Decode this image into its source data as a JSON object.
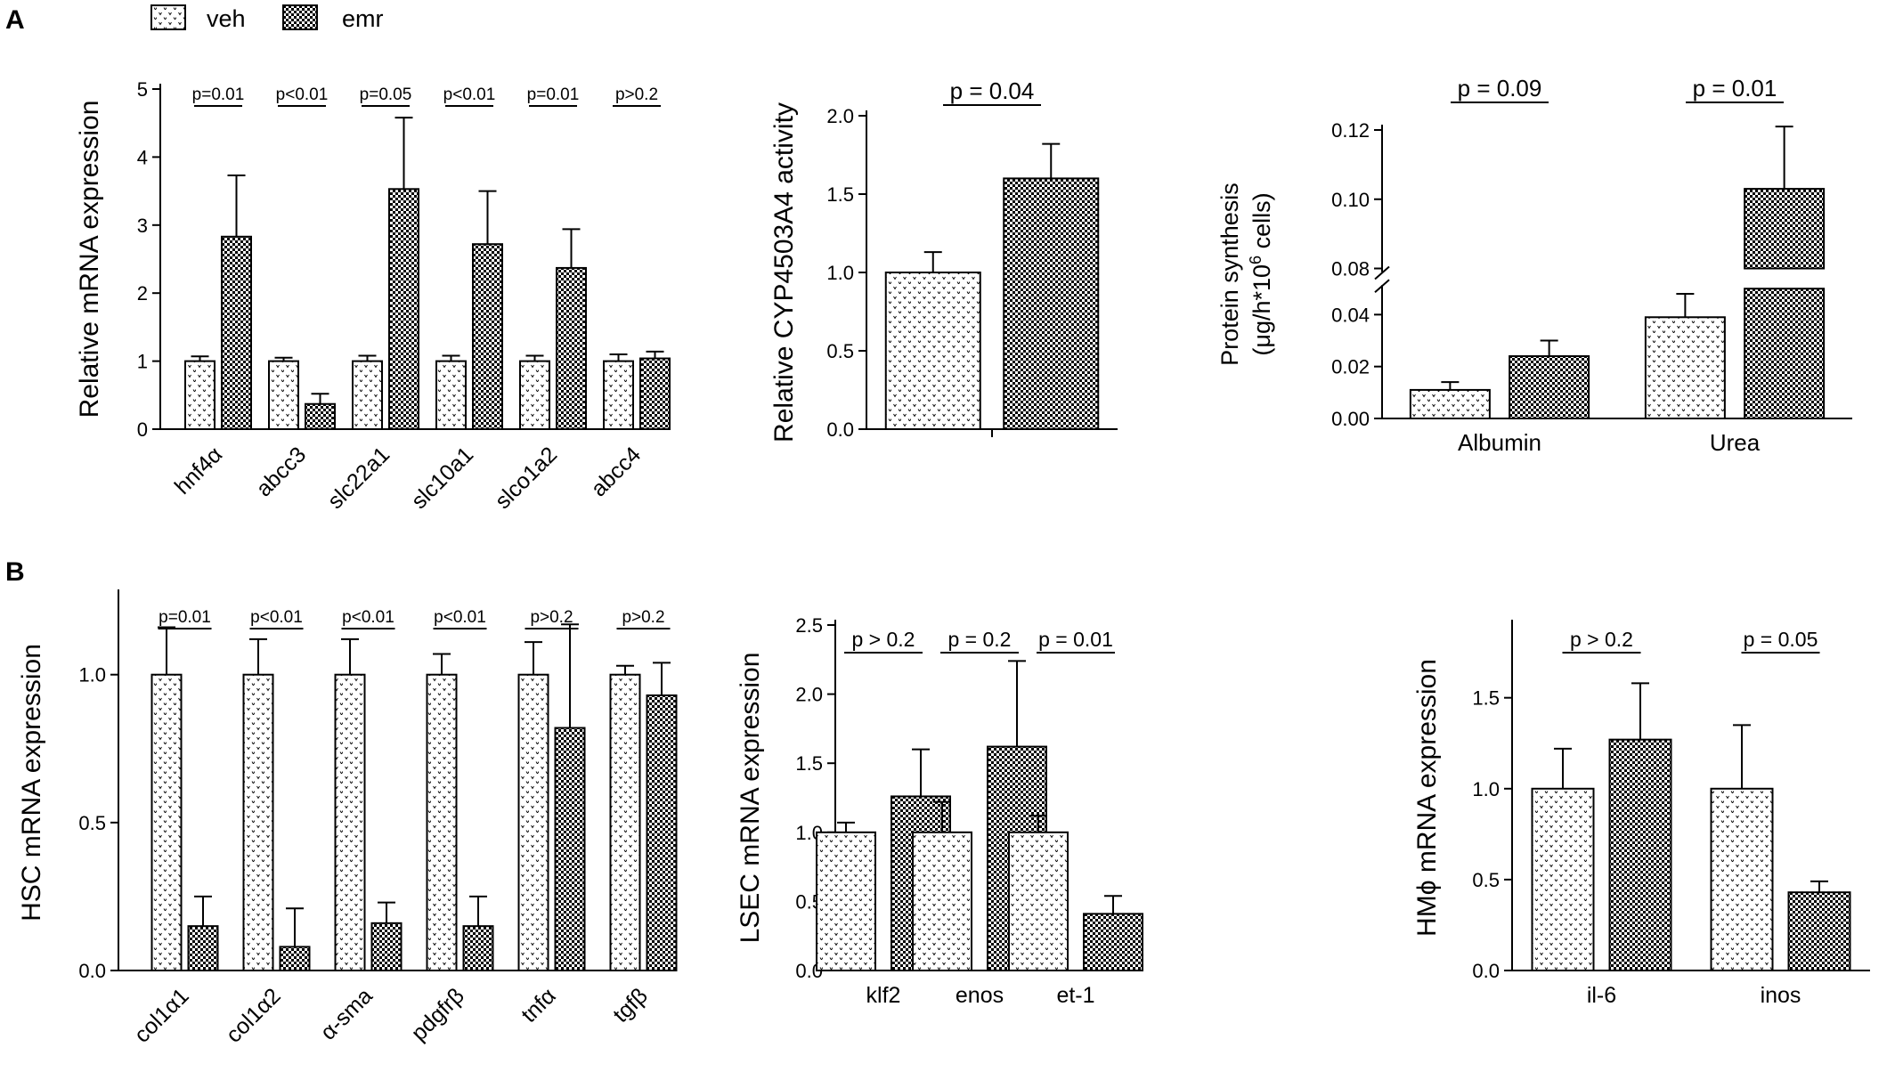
{
  "figure": {
    "panel_labels": [
      "A",
      "B"
    ],
    "legend": [
      {
        "key": "veh",
        "label": "veh",
        "pattern": "dots"
      },
      {
        "key": "emr",
        "label": "emr",
        "pattern": "checker"
      }
    ],
    "colors": {
      "bar_fill": "#ffffff",
      "checker_dark": "#000000",
      "dot_color": "#000000",
      "axis": "#000000"
    }
  },
  "chart_data": [
    {
      "id": "hepatocyte-mrna",
      "type": "bar",
      "ylabel": "Relative mRNA expression",
      "ylim": [
        0,
        5
      ],
      "yticks": [
        0,
        1,
        2,
        3,
        4,
        5
      ],
      "tick_format": "int",
      "x_rotated": true,
      "categories": [
        "hnf4α",
        "abcc3",
        "slc22a1",
        "slc10a1",
        "slco1a2",
        "abcc4"
      ],
      "series": [
        {
          "name": "veh",
          "values": [
            1.0,
            1.0,
            1.0,
            1.0,
            1.0,
            1.0
          ],
          "errors": [
            0.07,
            0.05,
            0.08,
            0.08,
            0.08,
            0.1
          ]
        },
        {
          "name": "emr",
          "values": [
            2.83,
            0.37,
            3.53,
            2.72,
            2.37,
            1.04
          ],
          "errors": [
            0.9,
            0.15,
            1.05,
            0.78,
            0.57,
            0.1
          ]
        }
      ],
      "pvalues": [
        "p=0.01",
        "p<0.01",
        "p=0.05",
        "p<0.01",
        "p=0.01",
        "p>0.2"
      ]
    },
    {
      "id": "cyp-activity",
      "type": "bar",
      "ylabel": "Relative CYP4503A4 activity",
      "ylim": [
        0,
        2.0
      ],
      "yticks": [
        0,
        0.5,
        1.0,
        1.5,
        2.0
      ],
      "tick_format": "1dp",
      "categories": [
        ""
      ],
      "series": [
        {
          "name": "veh",
          "values": [
            1.0
          ],
          "errors": [
            0.13
          ]
        },
        {
          "name": "emr",
          "values": [
            1.6
          ],
          "errors": [
            0.22
          ]
        }
      ],
      "pvalues": [
        "p = 0.04"
      ]
    },
    {
      "id": "protein-synthesis",
      "type": "bar",
      "ylabel": "Protein synthesis",
      "ylabel2_prefix": "(μg/h*10",
      "ylabel2_sup": "6",
      "ylabel2_suffix": " cells)",
      "ylim": [
        0,
        0.12
      ],
      "axis_break": [
        0.05,
        0.08
      ],
      "yticks": [
        0.0,
        0.02,
        0.04,
        0.08,
        0.1,
        0.12
      ],
      "tick_format": "2dp",
      "categories": [
        "Albumin",
        "Urea"
      ],
      "series": [
        {
          "name": "veh",
          "values": [
            0.011,
            0.039
          ],
          "errors": [
            0.003,
            0.009
          ]
        },
        {
          "name": "emr",
          "values": [
            0.024,
            0.103
          ],
          "errors": [
            0.006,
            0.018
          ]
        }
      ],
      "pvalues": [
        "p = 0.09",
        "p = 0.01"
      ]
    },
    {
      "id": "hsc-mrna",
      "type": "bar",
      "ylabel": "HSC mRNA expression",
      "ylim": [
        0,
        1.27
      ],
      "yticks": [
        0.0,
        0.5,
        1.0
      ],
      "tick_format": "1dp",
      "x_rotated": true,
      "categories": [
        "col1α1",
        "col1α2",
        "α-sma",
        "pdgfrβ",
        "tnfα",
        "tgfβ"
      ],
      "series": [
        {
          "name": "veh",
          "values": [
            1.0,
            1.0,
            1.0,
            1.0,
            1.0,
            1.0
          ],
          "errors": [
            0.16,
            0.12,
            0.12,
            0.07,
            0.11,
            0.03
          ]
        },
        {
          "name": "emr",
          "values": [
            0.15,
            0.08,
            0.16,
            0.15,
            0.82,
            0.93
          ],
          "errors": [
            0.1,
            0.13,
            0.07,
            0.1,
            0.35,
            0.11
          ]
        }
      ],
      "pvalues": [
        "p=0.01",
        "p<0.01",
        "p<0.01",
        "p<0.01",
        "p>0.2",
        "p>0.2"
      ]
    },
    {
      "id": "lsec-mrna",
      "type": "bar",
      "ylabel": "LSEC mRNA expression",
      "ylim": [
        0,
        2.5
      ],
      "yticks": [
        0.0,
        0.5,
        1.0,
        1.5,
        2.0,
        2.5
      ],
      "tick_format": "1dp",
      "categories": [
        "klf2",
        "enos",
        "et-1"
      ],
      "series": [
        {
          "name": "veh",
          "values": [
            1.0,
            1.0,
            1.0
          ],
          "errors": [
            0.07,
            0.22,
            0.12
          ]
        },
        {
          "name": "emr",
          "values": [
            1.26,
            1.62,
            0.41
          ],
          "errors": [
            0.34,
            0.62,
            0.13
          ]
        }
      ],
      "pvalues": [
        "p > 0.2",
        "p = 0.2",
        "p = 0.01"
      ]
    },
    {
      "id": "hm-mrna",
      "type": "bar",
      "ylabel": "HMϕ mRNA expression",
      "ylim": [
        0,
        1.9
      ],
      "yticks": [
        0.0,
        0.5,
        1.0,
        1.5
      ],
      "tick_format": "1dp",
      "categories": [
        "il-6",
        "inos"
      ],
      "series": [
        {
          "name": "veh",
          "values": [
            1.0,
            1.0
          ],
          "errors": [
            0.22,
            0.35
          ]
        },
        {
          "name": "emr",
          "values": [
            1.27,
            0.43
          ],
          "errors": [
            0.31,
            0.06
          ]
        }
      ],
      "pvalues": [
        "p > 0.2",
        "p = 0.05"
      ]
    }
  ]
}
